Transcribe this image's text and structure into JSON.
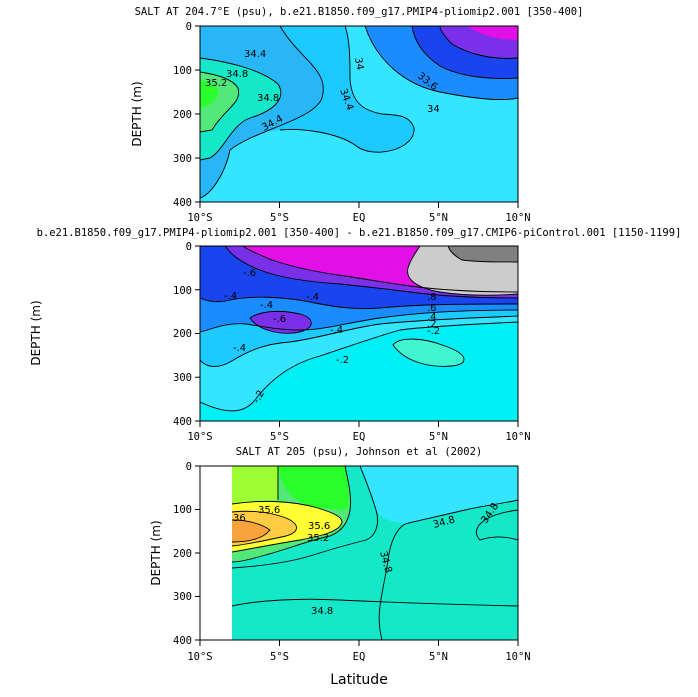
{
  "chart_data": [
    {
      "type": "contour",
      "title": "SALT AT 204.7°E (psu), b.e21.B1850.f09_g17.PMIP4-pliomip2.001 [350-400]",
      "xlabel": "",
      "ylabel": "DEPTH (m)",
      "x_ticks": [
        "10°S",
        "5°S",
        "EQ",
        "5°N",
        "10°N"
      ],
      "y_ticks": [
        "0",
        "100",
        "200",
        "300",
        "400"
      ],
      "xlim": [
        -10,
        10
      ],
      "ylim": [
        400,
        0
      ],
      "contour_labels": [
        "34.4",
        "34.8",
        "35.2",
        "34.8",
        "34.4",
        "34",
        "34.4",
        "33.6",
        "34"
      ]
    },
    {
      "type": "contour",
      "title": "b.e21.B1850.f09_g17.PMIP4-pliomip2.001 [350-400] - b.e21.B1850.f09_g17.CMIP6-piControl.001 [1150-1199]",
      "xlabel": "",
      "ylabel": "DEPTH (m)",
      "x_ticks": [
        "10°S",
        "5°S",
        "EQ",
        "5°N",
        "10°N"
      ],
      "y_ticks": [
        "0",
        "100",
        "200",
        "300",
        "400"
      ],
      "xlim": [
        -10,
        10
      ],
      "ylim": [
        400,
        0
      ],
      "contour_labels": [
        "-.6",
        "-.4",
        "-.4",
        "-.4",
        "-.6",
        "-.4",
        "-.4",
        "-.2",
        "-.2",
        ".8",
        ".6",
        ".4",
        ".2",
        "-.2"
      ]
    },
    {
      "type": "contour",
      "title": "SALT AT 205 (psu), Johnson et al (2002)",
      "xlabel": "Latitude",
      "ylabel": "DEPTH (m)",
      "x_ticks": [
        "10°S",
        "5°S",
        "EQ",
        "5°N",
        "10°N"
      ],
      "y_ticks": [
        "0",
        "100",
        "200",
        "300",
        "400"
      ],
      "xlim": [
        -10,
        10
      ],
      "ylim": [
        400,
        0
      ],
      "contour_labels": [
        "35.6",
        "36",
        "35.6",
        "35.2",
        "34.8",
        "34.8",
        "34.8"
      ]
    }
  ]
}
